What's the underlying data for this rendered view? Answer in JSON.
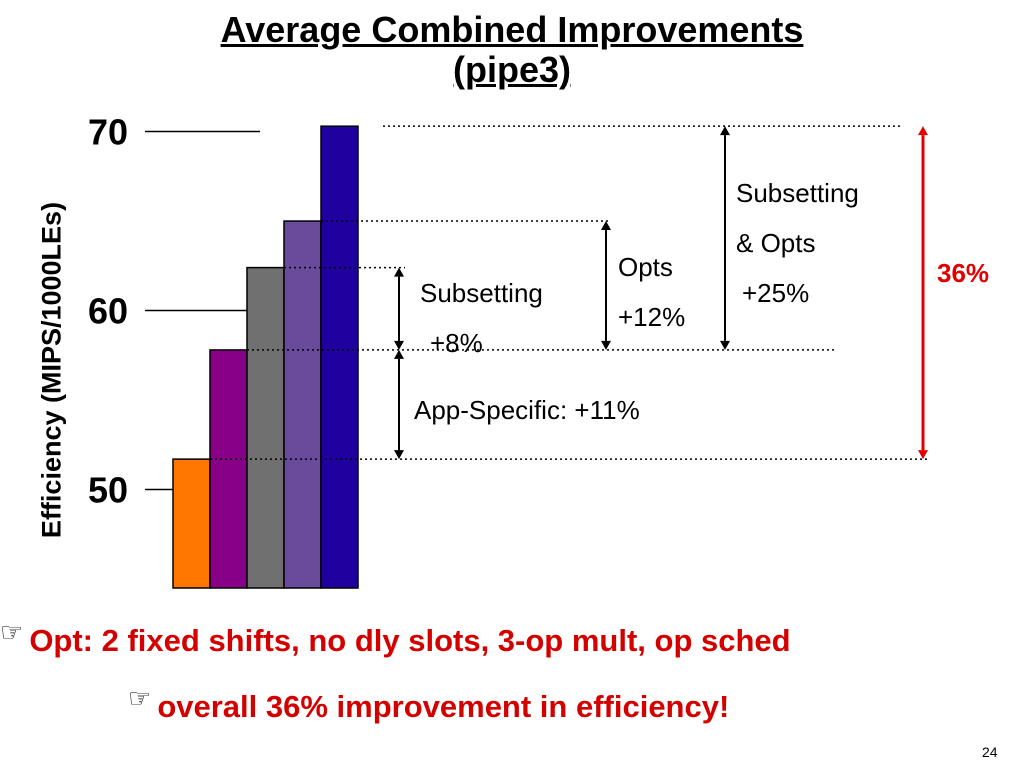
{
  "title": {
    "line1": "Average Combined Improvements",
    "line2": "(pipe3)"
  },
  "chart_data": {
    "type": "bar",
    "ylabel": "Efficiency (MIPS/1000LEs)",
    "y_ticks": [
      "50",
      "60",
      "70"
    ],
    "ylim": [
      44.5,
      71
    ],
    "values": [
      51.7,
      57.8,
      62.4,
      65.0,
      70.3
    ],
    "colors": [
      "#ff7700",
      "#880088",
      "#707070",
      "#6a4a9a",
      "#20009f"
    ]
  },
  "annotations": {
    "subsetting_opts": {
      "line1": "Subsetting",
      "line2": "& Opts",
      "line3": "+25%"
    },
    "opts": {
      "line1": "Opts",
      "line2": "+12%"
    },
    "subsetting": {
      "line1": "Subsetting",
      "line2": "+8%"
    },
    "app_specific": "App-Specific: +11%",
    "total": "36%"
  },
  "bullets": [
    {
      "icon": "pointing-hand-icon",
      "text": "Opt: 2 fixed shifts, no dly slots, 3-op mult, op sched"
    },
    {
      "icon": "pointing-hand-icon",
      "text": "overall 36% improvement in efficiency!"
    }
  ],
  "colors": {
    "accent_red": "#e00000",
    "bullet_red": "#d40000"
  },
  "page_number": "24"
}
